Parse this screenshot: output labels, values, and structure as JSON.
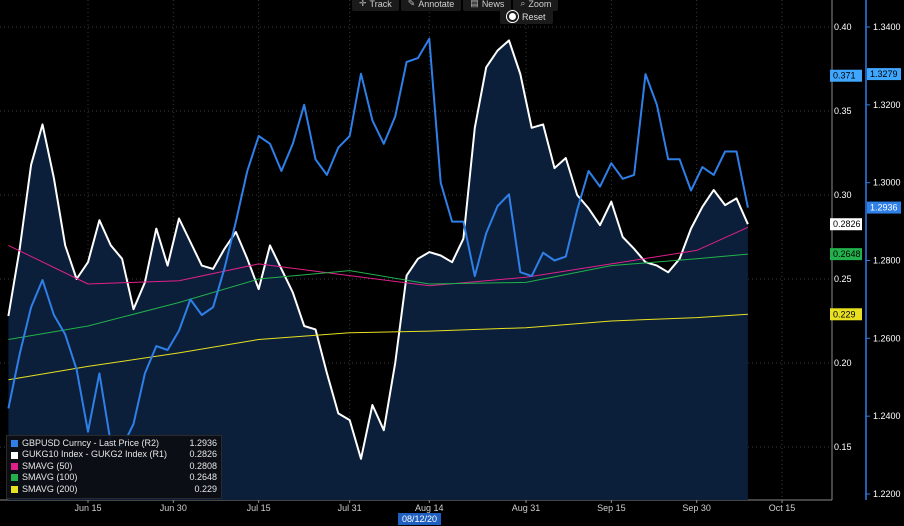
{
  "toolbar": {
    "track_label": "Track",
    "annotate_label": "Annotate",
    "news_label": "News",
    "zoom_label": "Zoom",
    "reset_label": "Reset"
  },
  "colors": {
    "background": "#000000",
    "area_fill": "#0b1f3a",
    "gbpusd": "#2f7fe8",
    "spread": "#ffffff",
    "sma50": "#e0208a",
    "sma100": "#22b14c",
    "sma200": "#e8e020"
  },
  "crosshair_date": "08/12/20",
  "legend": [
    {
      "name": "GBPUSD Curncy - Last Price (R2)",
      "value": "1.2936",
      "color": "#2f7fe8"
    },
    {
      "name": "GUKG10 Index - GUKG2 Index (R1)",
      "value": "0.2826",
      "color": "#ffffff"
    },
    {
      "name": "SMAVG (50)",
      "value": "0.2808",
      "color": "#e0208a"
    },
    {
      "name": "SMAVG (100)",
      "value": "0.2648",
      "color": "#22b14c"
    },
    {
      "name": "SMAVG (200)",
      "value": "0.229",
      "color": "#e8e020"
    }
  ],
  "chart_data": {
    "type": "line",
    "x_labels": [
      "Jun 15",
      "Jun 30",
      "Jul 15",
      "Jul 31",
      "Aug 14",
      "Aug 31",
      "Sep 15",
      "Sep 30",
      "Oct 15"
    ],
    "y_left_ticks": [
      "0.40",
      "0.35",
      "0.30",
      "0.25",
      "0.20",
      "0.15"
    ],
    "y_right_ticks": [
      "1.3400",
      "1.3200",
      "1.3000",
      "1.2800",
      "1.2600",
      "1.2400",
      "1.2200"
    ],
    "y_left_range": [
      0.12,
      0.42
    ],
    "y_right_range": [
      1.22,
      1.345
    ],
    "grid": true,
    "legend_position": "bottom-left",
    "value_tags": [
      {
        "axis": "left",
        "text": "0.371",
        "value": 0.371,
        "bg": "#3fa7ff",
        "fg": "#000000"
      },
      {
        "axis": "right",
        "text": "1.3279",
        "value": 1.3279,
        "bg": "#3fa7ff",
        "fg": "#000000"
      },
      {
        "axis": "left",
        "text": "0.2826",
        "value": 0.2826,
        "bg": "#ffffff",
        "fg": "#000000"
      },
      {
        "axis": "right",
        "text": "1.2936",
        "value": 1.2936,
        "bg": "#2f7fe8",
        "fg": "#ffffff"
      },
      {
        "axis": "left",
        "text": "0.2648",
        "value": 0.2648,
        "bg": "#22b14c",
        "fg": "#000000"
      },
      {
        "axis": "left",
        "text": "0.229",
        "value": 0.229,
        "bg": "#e8e020",
        "fg": "#000000"
      }
    ],
    "series": [
      {
        "name": "GUKG10 Index - GUKG2 Index (R1)",
        "axis": "left",
        "color": "#ffffff",
        "filled": true,
        "x": [
          "Jun 1",
          "Jun 3",
          "Jun 5",
          "Jun 7",
          "Jun 9",
          "Jun 11",
          "Jun 13",
          "Jun 15",
          "Jun 17",
          "Jun 19",
          "Jun 21",
          "Jun 23",
          "Jun 25",
          "Jun 27",
          "Jun 29",
          "Jul 1",
          "Jul 3",
          "Jul 5",
          "Jul 7",
          "Jul 9",
          "Jul 11",
          "Jul 13",
          "Jul 15",
          "Jul 17",
          "Jul 19",
          "Jul 21",
          "Jul 23",
          "Jul 25",
          "Jul 27",
          "Jul 29",
          "Jul 31",
          "Aug 2",
          "Aug 4",
          "Aug 6",
          "Aug 8",
          "Aug 10",
          "Aug 12",
          "Aug 14",
          "Aug 16",
          "Aug 18",
          "Aug 20",
          "Aug 22",
          "Aug 24",
          "Aug 26",
          "Aug 28",
          "Aug 30",
          "Sep 1",
          "Sep 3",
          "Sep 5",
          "Sep 7",
          "Sep 9",
          "Sep 11",
          "Sep 13",
          "Sep 15",
          "Sep 17",
          "Sep 19",
          "Sep 21",
          "Sep 23",
          "Sep 25",
          "Sep 27",
          "Sep 29",
          "Oct 1",
          "Oct 3",
          "Oct 5",
          "Oct 7",
          "Oct 9"
        ],
        "y": [
          0.228,
          0.268,
          0.318,
          0.342,
          0.31,
          0.27,
          0.25,
          0.26,
          0.285,
          0.27,
          0.262,
          0.232,
          0.248,
          0.28,
          0.258,
          0.286,
          0.272,
          0.258,
          0.256,
          0.268,
          0.278,
          0.262,
          0.244,
          0.27,
          0.256,
          0.242,
          0.222,
          0.22,
          0.194,
          0.17,
          0.166,
          0.143,
          0.175,
          0.16,
          0.2,
          0.252,
          0.262,
          0.266,
          0.264,
          0.26,
          0.274,
          0.34,
          0.376,
          0.386,
          0.392,
          0.372,
          0.34,
          0.342,
          0.316,
          0.322,
          0.3,
          0.292,
          0.282,
          0.296,
          0.275,
          0.268,
          0.26,
          0.258,
          0.254,
          0.262,
          0.28,
          0.293,
          0.303,
          0.294,
          0.298,
          0.2826
        ]
      },
      {
        "name": "GBPUSD Curncy - Last Price (R2)",
        "axis": "right",
        "color": "#2f7fe8",
        "x": [
          "Jun 1",
          "Jun 3",
          "Jun 5",
          "Jun 7",
          "Jun 9",
          "Jun 11",
          "Jun 13",
          "Jun 15",
          "Jun 17",
          "Jun 19",
          "Jun 21",
          "Jun 23",
          "Jun 25",
          "Jun 27",
          "Jun 29",
          "Jul 1",
          "Jul 3",
          "Jul 5",
          "Jul 7",
          "Jul 9",
          "Jul 11",
          "Jul 13",
          "Jul 15",
          "Jul 17",
          "Jul 19",
          "Jul 21",
          "Jul 23",
          "Jul 25",
          "Jul 27",
          "Jul 29",
          "Jul 31",
          "Aug 2",
          "Aug 4",
          "Aug 6",
          "Aug 8",
          "Aug 10",
          "Aug 12",
          "Aug 14",
          "Aug 16",
          "Aug 18",
          "Aug 20",
          "Aug 22",
          "Aug 24",
          "Aug 26",
          "Aug 28",
          "Aug 30",
          "Sep 1",
          "Sep 3",
          "Sep 5",
          "Sep 7",
          "Sep 9",
          "Sep 11",
          "Sep 13",
          "Sep 15",
          "Sep 17",
          "Sep 19",
          "Sep 21",
          "Sep 23",
          "Sep 25",
          "Sep 27",
          "Sep 29",
          "Oct 1",
          "Oct 3",
          "Oct 5",
          "Oct 7",
          "Oct 9"
        ],
        "y": [
          1.242,
          1.256,
          1.268,
          1.275,
          1.266,
          1.261,
          1.252,
          1.236,
          1.251,
          1.233,
          1.232,
          1.238,
          1.251,
          1.258,
          1.257,
          1.262,
          1.27,
          1.266,
          1.268,
          1.278,
          1.29,
          1.303,
          1.312,
          1.31,
          1.303,
          1.31,
          1.32,
          1.306,
          1.302,
          1.309,
          1.312,
          1.328,
          1.316,
          1.31,
          1.317,
          1.331,
          1.332,
          1.337,
          1.3,
          1.29,
          1.29,
          1.276,
          1.287,
          1.294,
          1.297,
          1.277,
          1.276,
          1.282,
          1.28,
          1.281,
          1.293,
          1.303,
          1.299,
          1.305,
          1.301,
          1.302,
          1.3279,
          1.32,
          1.306,
          1.306,
          1.298,
          1.304,
          1.302,
          1.308,
          1.308,
          1.2936
        ]
      },
      {
        "name": "SMAVG (50)",
        "axis": "left",
        "color": "#e0208a",
        "x": [
          "Jun 1",
          "Jun 15",
          "Jul 1",
          "Jul 15",
          "Jul 31",
          "Aug 14",
          "Aug 31",
          "Sep 15",
          "Sep 30",
          "Oct 9"
        ],
        "y": [
          0.27,
          0.247,
          0.249,
          0.259,
          0.252,
          0.246,
          0.251,
          0.259,
          0.267,
          0.2808
        ]
      },
      {
        "name": "SMAVG (100)",
        "axis": "left",
        "color": "#22b14c",
        "x": [
          "Jun 1",
          "Jun 15",
          "Jul 1",
          "Jul 15",
          "Jul 31",
          "Aug 14",
          "Aug 31",
          "Sep 15",
          "Sep 30",
          "Oct 9"
        ],
        "y": [
          0.214,
          0.222,
          0.236,
          0.25,
          0.255,
          0.247,
          0.248,
          0.258,
          0.262,
          0.2648
        ]
      },
      {
        "name": "SMAVG (200)",
        "axis": "left",
        "color": "#e8e020",
        "x": [
          "Jun 1",
          "Jun 15",
          "Jul 1",
          "Jul 15",
          "Jul 31",
          "Aug 14",
          "Aug 31",
          "Sep 15",
          "Sep 30",
          "Oct 9"
        ],
        "y": [
          0.19,
          0.198,
          0.206,
          0.214,
          0.218,
          0.219,
          0.221,
          0.225,
          0.227,
          0.229
        ]
      }
    ]
  }
}
